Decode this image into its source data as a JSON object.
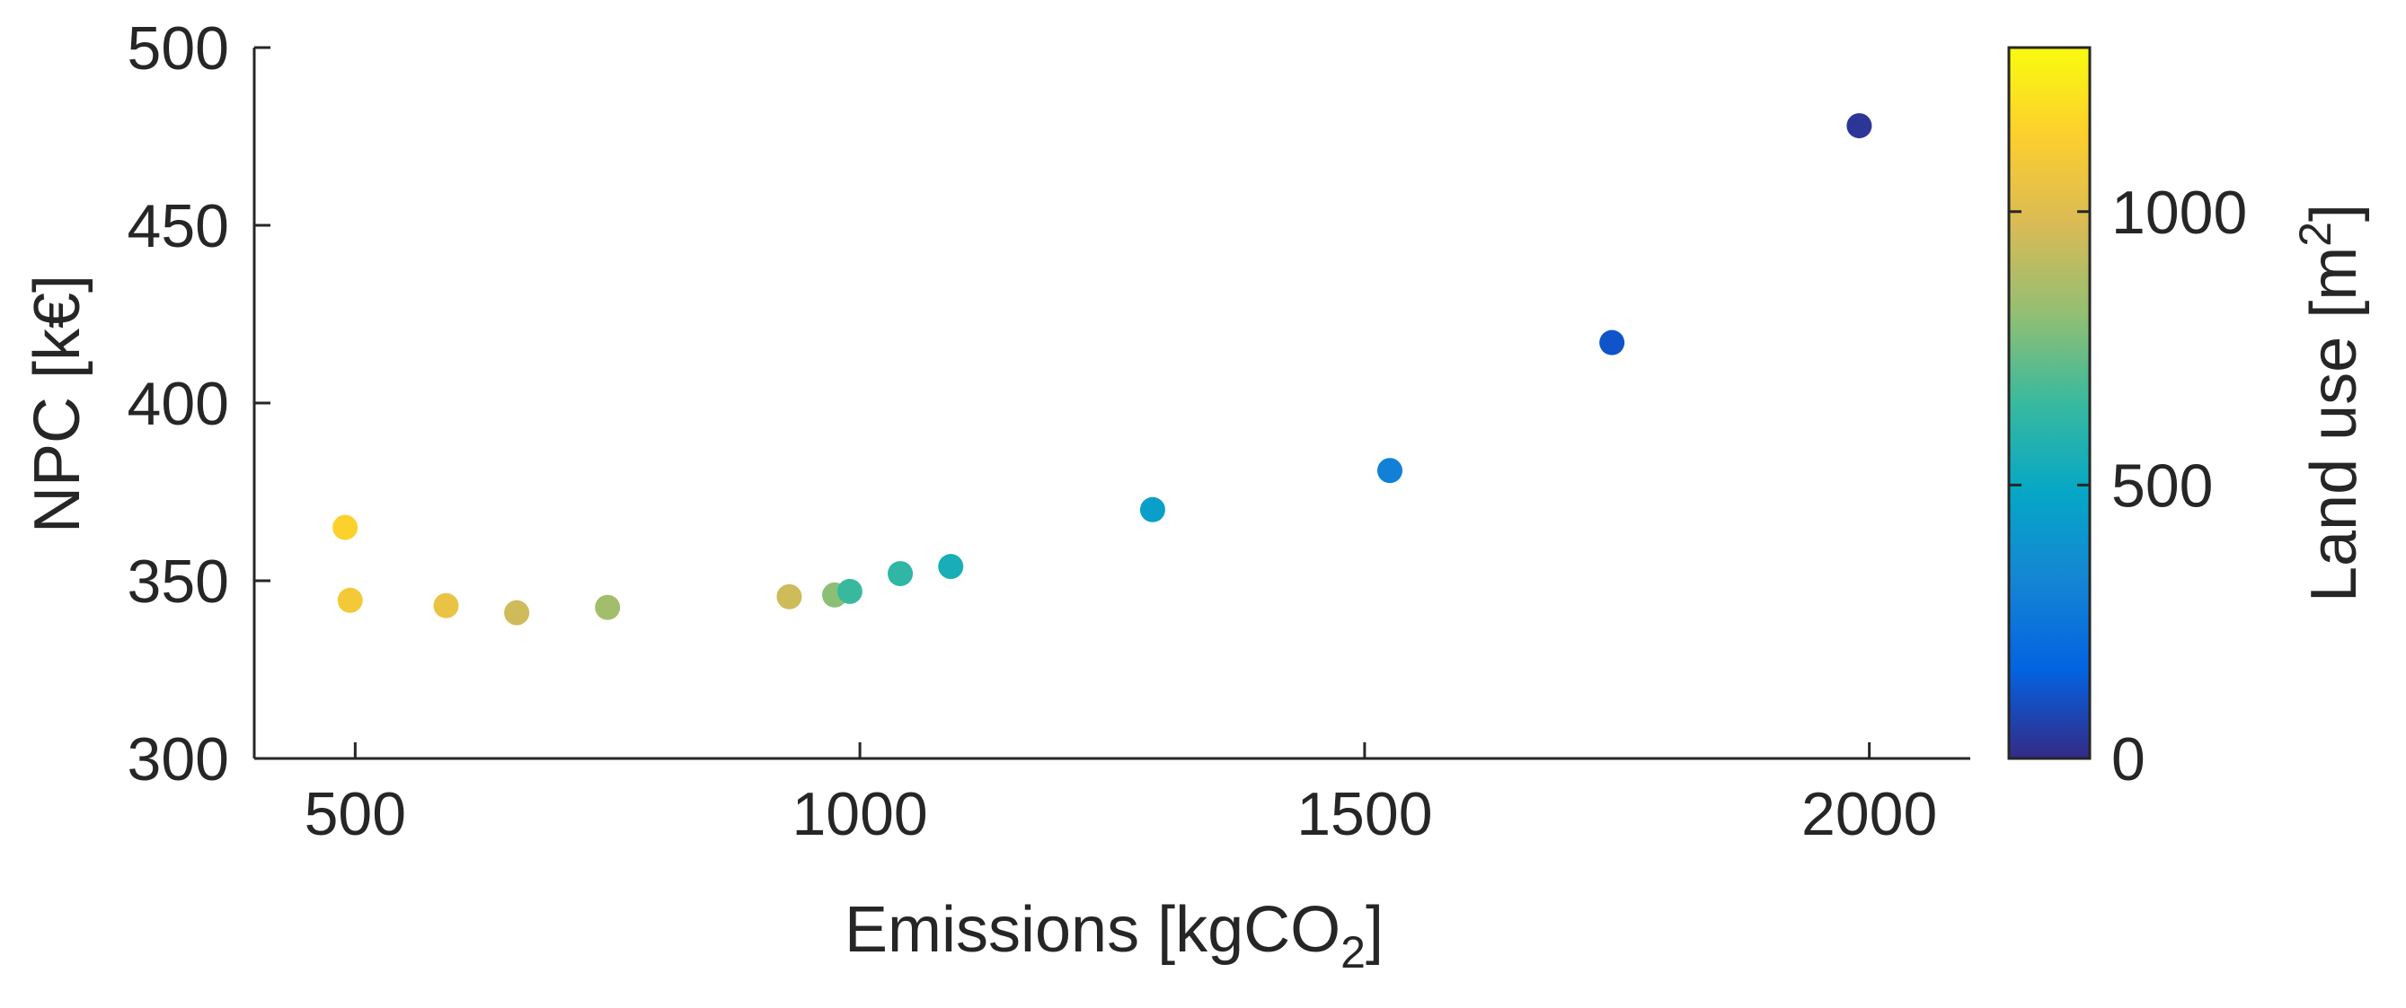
{
  "chart_data": {
    "type": "scatter",
    "xlabel": "Emissions [kgCO",
    "xlabel_sub": "2",
    "xlabel_close": "]",
    "ylabel": "NPC [k€]",
    "xlim": [
      400,
      2100
    ],
    "ylim": [
      300,
      500
    ],
    "xticks": [
      500,
      1000,
      1500,
      2000
    ],
    "yticks": [
      300,
      350,
      400,
      450,
      500
    ],
    "colorbar": {
      "label": "Land use [m",
      "label_sup": "2",
      "label_close": "]",
      "colormap": "parula",
      "range": [
        0,
        1300
      ],
      "ticks": [
        0,
        500,
        1000
      ]
    },
    "grid": false,
    "points": [
      {
        "x": 490,
        "y": 365,
        "c": 1150
      },
      {
        "x": 495,
        "y": 344.5,
        "c": 1100
      },
      {
        "x": 590,
        "y": 343,
        "c": 1050
      },
      {
        "x": 660,
        "y": 341,
        "c": 950
      },
      {
        "x": 750,
        "y": 342.5,
        "c": 850
      },
      {
        "x": 930,
        "y": 345.5,
        "c": 950
      },
      {
        "x": 975,
        "y": 346,
        "c": 800
      },
      {
        "x": 990,
        "y": 347,
        "c": 650
      },
      {
        "x": 1040,
        "y": 352,
        "c": 620
      },
      {
        "x": 1090,
        "y": 354,
        "c": 550
      },
      {
        "x": 1290,
        "y": 370,
        "c": 450
      },
      {
        "x": 1525,
        "y": 381,
        "c": 300
      },
      {
        "x": 1745,
        "y": 417,
        "c": 120
      },
      {
        "x": 1990,
        "y": 478,
        "c": 30
      }
    ]
  }
}
